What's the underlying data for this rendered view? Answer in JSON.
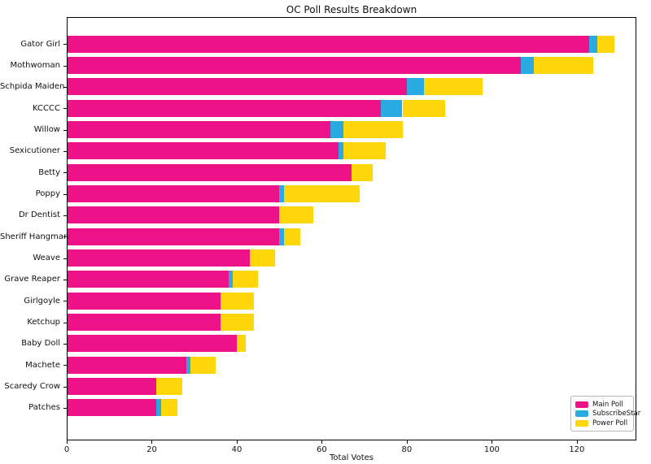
{
  "chart_data": {
    "type": "bar",
    "orientation": "horizontal",
    "stacked": true,
    "title": "OC Poll Results Breakdown",
    "xlabel": "Total Votes",
    "ylabel": "",
    "xlim": [
      0,
      134
    ],
    "xticks": [
      0,
      20,
      40,
      60,
      80,
      100,
      120
    ],
    "grid": false,
    "legend_position": "lower right",
    "categories": [
      "Gator Girl",
      "Mothwoman",
      "Schpida Maiden",
      "KCCCC",
      "Willow",
      "Sexicutioner",
      "Betty",
      "Poppy",
      "Dr Dentist",
      "Sheriff Hangman",
      "Weave",
      "Grave Reaper",
      "Girlgoyle",
      "Ketchup",
      "Baby Doll",
      "Machete",
      "Scaredy Crow",
      "Patches"
    ],
    "series": [
      {
        "name": "Main Poll",
        "color": "#ee1289",
        "values": [
          123,
          107,
          80,
          74,
          62,
          64,
          67,
          50,
          50,
          50,
          43,
          38,
          36,
          36,
          40,
          28,
          21,
          21
        ]
      },
      {
        "name": "SubscribeStar",
        "color": "#29abe2",
        "values": [
          2,
          3,
          4,
          5,
          3,
          1,
          0,
          1,
          0,
          1,
          0,
          1,
          0,
          0,
          0,
          1,
          0,
          1
        ]
      },
      {
        "name": "Power Poll",
        "color": "#ffd60a",
        "values": [
          4,
          14,
          14,
          10,
          14,
          10,
          5,
          18,
          8,
          4,
          6,
          6,
          8,
          8,
          2,
          6,
          6,
          4
        ]
      }
    ],
    "totals": [
      129,
      124,
      98,
      89,
      79,
      75,
      72,
      69,
      58,
      55,
      49,
      45,
      44,
      44,
      42,
      35,
      27,
      26
    ]
  }
}
